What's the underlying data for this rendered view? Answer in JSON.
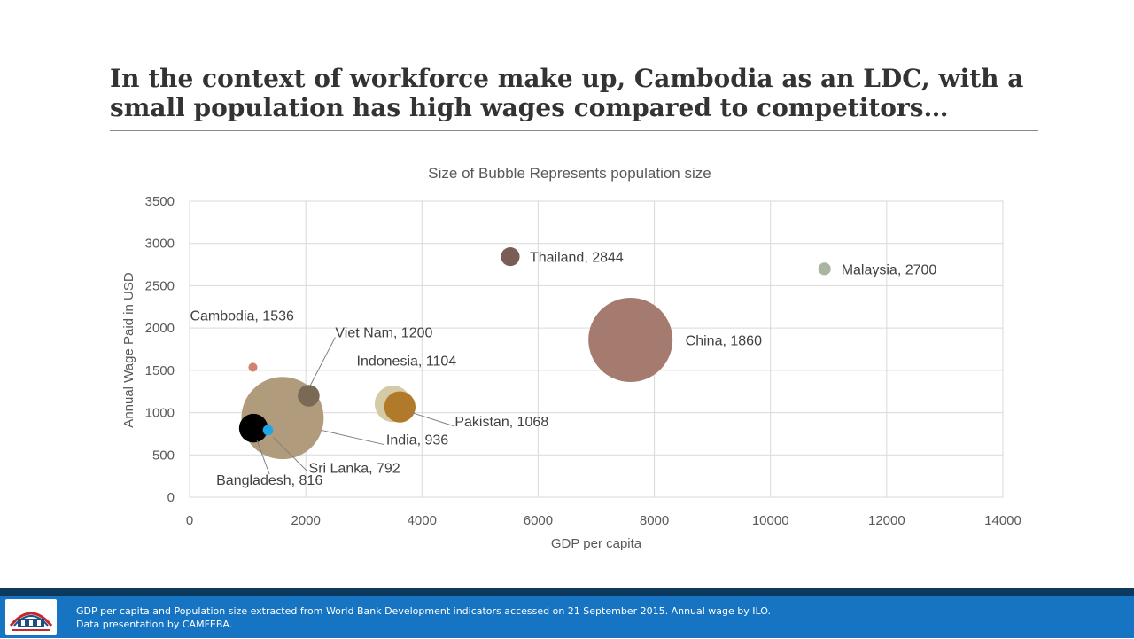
{
  "slide": {
    "title": "In the context of workforce make up, Cambodia as an LDC, with a small population has high wages compared to competitors…"
  },
  "chart_data": {
    "type": "bubble",
    "title": "Size of Bubble Represents population size",
    "xlabel": "GDP per capita",
    "ylabel": "Annual Wage Paid in USD",
    "xlim": [
      0,
      14000
    ],
    "ylim": [
      0,
      3500
    ],
    "xticks": [
      0,
      2000,
      4000,
      6000,
      8000,
      10000,
      12000,
      14000
    ],
    "yticks": [
      0,
      500,
      1000,
      1500,
      2000,
      2500,
      3000,
      3500
    ],
    "grid": true,
    "legend": "none",
    "size_encodes": "population size",
    "series": [
      {
        "label": "Cambodia, 1536",
        "x": 1090,
        "y": 1536,
        "size": 15.6,
        "color": "#d0826c"
      },
      {
        "label": "Viet Nam, 1200",
        "x": 2050,
        "y": 1200,
        "size": 91.7,
        "color": "#7a6a55"
      },
      {
        "label": "Indonesia, 1104",
        "x": 3500,
        "y": 1104,
        "size": 257.6,
        "color": "#d4cba6"
      },
      {
        "label": "Pakistan, 1068",
        "x": 3620,
        "y": 1068,
        "size": 188.9,
        "color": "#b07a2a"
      },
      {
        "label": "India, 936",
        "x": 1600,
        "y": 936,
        "size": 1311,
        "color": "#b09c7c"
      },
      {
        "label": "Sri Lanka, 792",
        "x": 1350,
        "y": 792,
        "size": 20.9,
        "color": "#1ea7e8"
      },
      {
        "label": "Bangladesh, 816",
        "x": 1100,
        "y": 816,
        "size": 161,
        "color": "#000000"
      },
      {
        "label": "Thailand, 2844",
        "x": 5520,
        "y": 2844,
        "size": 68,
        "color": "#7a5d54"
      },
      {
        "label": "China, 1860",
        "x": 7590,
        "y": 1860,
        "size": 1371,
        "color": "#a47b6e"
      },
      {
        "label": "Malaysia, 2700",
        "x": 10930,
        "y": 2700,
        "size": 30.3,
        "color": "#a9b59f"
      }
    ]
  },
  "footer": {
    "line1": "GDP per capita and Population size extracted from World Bank Development indicators accessed on 21 September 2015.  Annual wage by ILO.",
    "line2": "Data presentation by CAMFEBA."
  }
}
